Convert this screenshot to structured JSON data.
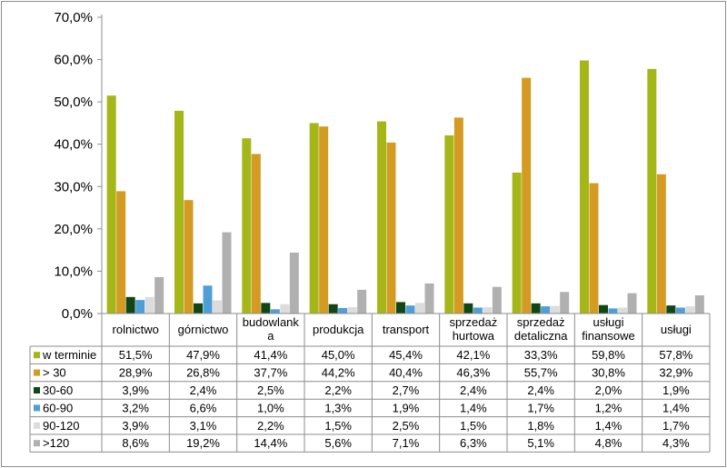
{
  "chart_data": {
    "type": "bar",
    "categories": [
      "rolnictwo",
      "górnictwo",
      "budowlanka",
      "produkcja",
      "transport",
      "sprzedaż hurtowa",
      "sprzedaż detaliczna",
      "usługi finansowe",
      "usługi"
    ],
    "category_labels": [
      [
        "rolnictwo"
      ],
      [
        "górnictwo"
      ],
      [
        "budowlank",
        "a"
      ],
      [
        "produkcja"
      ],
      [
        "transport"
      ],
      [
        "sprzedaż",
        "hurtowa"
      ],
      [
        "sprzedaż",
        "detaliczna"
      ],
      [
        "usługi",
        "finansowe"
      ],
      [
        "usługi"
      ]
    ],
    "series": [
      {
        "name": "w terminie",
        "color": "#a5b718",
        "values": [
          51.5,
          47.9,
          41.4,
          45.0,
          45.4,
          42.1,
          33.3,
          59.8,
          57.8
        ]
      },
      {
        "name": "> 30",
        "color": "#d39b21",
        "values": [
          28.9,
          26.8,
          37.7,
          44.2,
          40.4,
          46.3,
          55.7,
          30.8,
          32.9
        ]
      },
      {
        "name": "30-60",
        "color": "#114617",
        "values": [
          3.9,
          2.4,
          2.5,
          2.2,
          2.7,
          2.4,
          2.4,
          2.0,
          1.9
        ]
      },
      {
        "name": "60-90",
        "color": "#4f9fd6",
        "values": [
          3.2,
          6.6,
          1.0,
          1.3,
          1.9,
          1.4,
          1.7,
          1.2,
          1.4
        ]
      },
      {
        "name": "90-120",
        "color": "#dcdcdc",
        "values": [
          3.9,
          3.1,
          2.2,
          1.5,
          2.5,
          1.5,
          1.8,
          1.4,
          1.7
        ]
      },
      {
        "name": ">120",
        "color": "#b0b0b0",
        "values": [
          8.6,
          19.2,
          14.4,
          5.6,
          7.1,
          6.3,
          5.1,
          4.8,
          4.3
        ]
      }
    ],
    "table_values": [
      [
        "51,5%",
        "47,9%",
        "41,4%",
        "45,0%",
        "45,4%",
        "42,1%",
        "33,3%",
        "59,8%",
        "57,8%"
      ],
      [
        "28,9%",
        "26,8%",
        "37,7%",
        "44,2%",
        "40,4%",
        "46,3%",
        "55,7%",
        "30,8%",
        "32,9%"
      ],
      [
        "3,9%",
        "2,4%",
        "2,5%",
        "2,2%",
        "2,7%",
        "2,4%",
        "2,4%",
        "2,0%",
        "1,9%"
      ],
      [
        "3,2%",
        "6,6%",
        "1,0%",
        "1,3%",
        "1,9%",
        "1,4%",
        "1,7%",
        "1,2%",
        "1,4%"
      ],
      [
        "3,9%",
        "3,1%",
        "2,2%",
        "1,5%",
        "2,5%",
        "1,5%",
        "1,8%",
        "1,4%",
        "1,7%"
      ],
      [
        "8,6%",
        "19,2%",
        "14,4%",
        "5,6%",
        "7,1%",
        "6,3%",
        "5,1%",
        "4,8%",
        "4,3%"
      ]
    ],
    "y_ticks": [
      "0,0%",
      "10,0%",
      "20,0%",
      "30,0%",
      "40,0%",
      "50,0%",
      "60,0%",
      "70,0%"
    ],
    "ylim": [
      0,
      70
    ],
    "title": "",
    "xlabel": "",
    "ylabel": "",
    "grid": false,
    "legend": "data-table"
  }
}
